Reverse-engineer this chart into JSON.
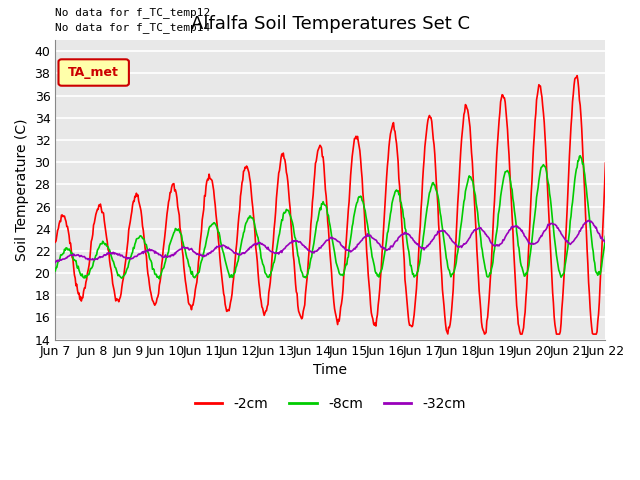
{
  "title": "Alfalfa Soil Temperatures Set C",
  "xlabel": "Time",
  "ylabel": "Soil Temperature (C)",
  "ylim": [
    14,
    41
  ],
  "yticks": [
    14,
    16,
    18,
    20,
    22,
    24,
    26,
    28,
    30,
    32,
    34,
    36,
    38,
    40
  ],
  "xtick_labels": [
    "Jun 7",
    "Jun 8",
    "Jun 9",
    "Jun 10",
    "Jun 11",
    "Jun 12",
    "Jun 13",
    "Jun 14",
    "Jun 15",
    "Jun 16",
    "Jun 17",
    "Jun 18",
    "Jun 19",
    "Jun 20",
    "Jun 21",
    "Jun 22"
  ],
  "no_data_text1": "No data for f_TC_temp12",
  "no_data_text2": "No data for f_TC_temp14",
  "ta_met_label": "TA_met",
  "legend_labels": [
    "-2cm",
    "-8cm",
    "-32cm"
  ],
  "legend_colors": [
    "#ff0000",
    "#00cc00",
    "#9900bb"
  ],
  "line_colors": [
    "#ff0000",
    "#00cc00",
    "#9900bb"
  ],
  "bg_color": "#ffffff",
  "plot_bg_color": "#e8e8e8",
  "grid_color": "#ffffff",
  "title_fontsize": 13,
  "axis_fontsize": 10,
  "tick_fontsize": 9
}
